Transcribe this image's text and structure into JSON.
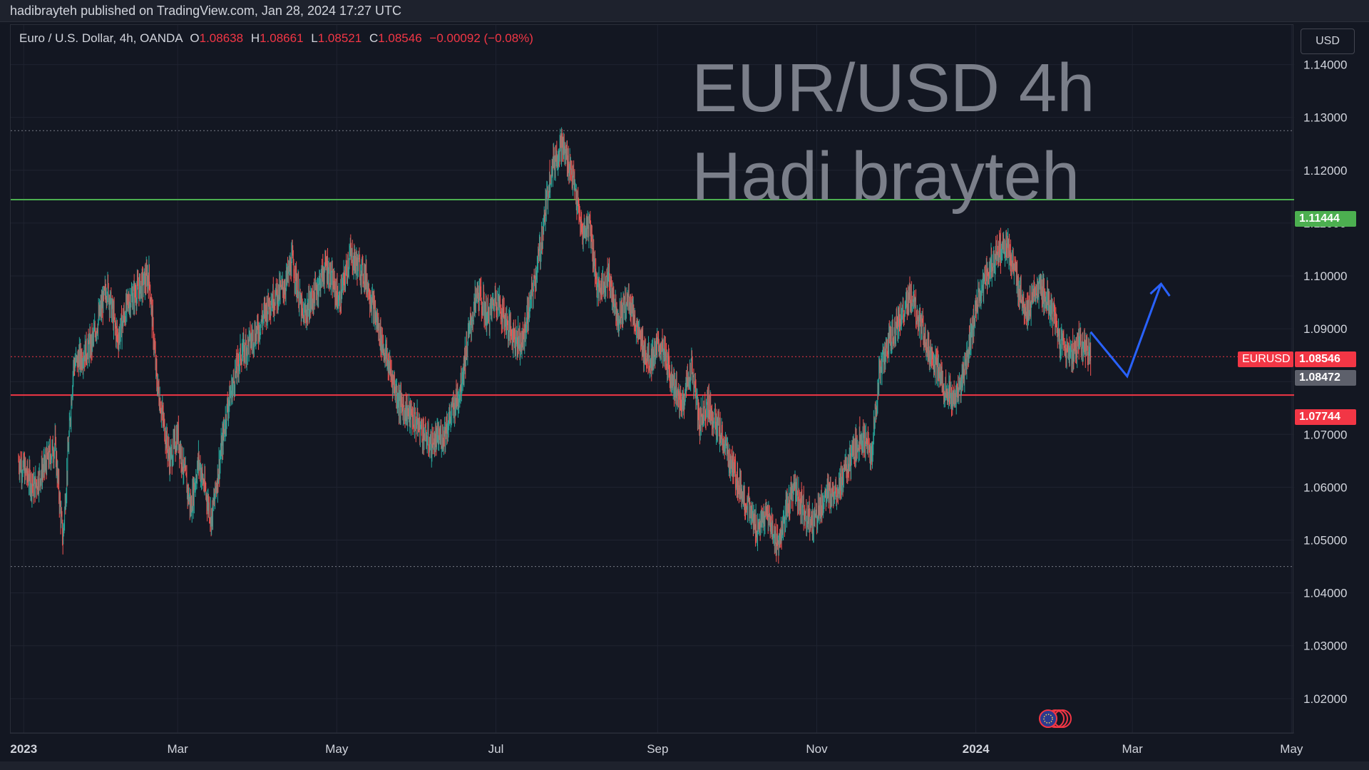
{
  "header": {
    "published_text": "hadibrayteh published on TradingView.com, Jan 28, 2024 17:27 UTC"
  },
  "legend": {
    "symbol": "Euro / U.S. Dollar, 4h, OANDA",
    "open_label": "O",
    "open": "1.08638",
    "high_label": "H",
    "high": "1.08661",
    "low_label": "L",
    "low": "1.08521",
    "close_label": "C",
    "close": "1.08546",
    "change": "−0.00092 (−0.08%)"
  },
  "currency_button": "USD",
  "watermark": {
    "line1": "EUR/USD 4h",
    "line2": "Hadi brayteh"
  },
  "tags": {
    "resistance": "1.11444",
    "symbol_label": "EURUSD",
    "last_price": "1.08546",
    "prev_close": "1.08472",
    "support": "1.07744"
  },
  "colors": {
    "background": "#131722",
    "up": "#26a69a",
    "down": "#ef5350",
    "resistance_line": "#4caf50",
    "support_line": "#f23645",
    "projection_arrow": "#2962ff"
  },
  "chart_data": {
    "type": "candlestick",
    "symbol": "EURUSD",
    "timeframe": "4h",
    "x_ticks": [
      "2023",
      "Mar",
      "May",
      "Jul",
      "Sep",
      "Nov",
      "2024",
      "Mar",
      "May"
    ],
    "y_ticks": [
      1.02,
      1.03,
      1.04,
      1.05,
      1.06,
      1.07,
      1.08,
      1.09,
      1.1,
      1.11,
      1.12,
      1.13,
      1.14
    ],
    "ylim": [
      1.0135,
      1.1475
    ],
    "grid": true,
    "swing_closes": [
      [
        "2022-12-30",
        1.065
      ],
      [
        "2023-01-05",
        1.06
      ],
      [
        "2023-01-13",
        1.068
      ],
      [
        "2023-01-16",
        1.05
      ],
      [
        "2023-01-20",
        1.083
      ],
      [
        "2023-01-27",
        1.087
      ],
      [
        "2023-02-02",
        1.098
      ],
      [
        "2023-02-06",
        1.088
      ],
      [
        "2023-02-10",
        1.095
      ],
      [
        "2023-02-18",
        1.1
      ],
      [
        "2023-02-21",
        1.08
      ],
      [
        "2023-02-26",
        1.065
      ],
      [
        "2023-03-01",
        1.07
      ],
      [
        "2023-03-06",
        1.056
      ],
      [
        "2023-03-09",
        1.065
      ],
      [
        "2023-03-14",
        1.054
      ],
      [
        "2023-03-20",
        1.075
      ],
      [
        "2023-03-25",
        1.085
      ],
      [
        "2023-04-01",
        1.09
      ],
      [
        "2023-04-05",
        1.095
      ],
      [
        "2023-04-11",
        1.098
      ],
      [
        "2023-04-14",
        1.103
      ],
      [
        "2023-04-18",
        1.092
      ],
      [
        "2023-04-22",
        1.096
      ],
      [
        "2023-04-27",
        1.102
      ],
      [
        "2023-05-02",
        1.095
      ],
      [
        "2023-05-06",
        1.104
      ],
      [
        "2023-05-12",
        1.1
      ],
      [
        "2023-05-18",
        1.088
      ],
      [
        "2023-05-25",
        1.076
      ],
      [
        "2023-06-01",
        1.072
      ],
      [
        "2023-06-06",
        1.068
      ],
      [
        "2023-06-11",
        1.07
      ],
      [
        "2023-06-17",
        1.078
      ],
      [
        "2023-06-21",
        1.09
      ],
      [
        "2023-06-24",
        1.097
      ],
      [
        "2023-06-28",
        1.092
      ],
      [
        "2023-07-01",
        1.096
      ],
      [
        "2023-07-06",
        1.09
      ],
      [
        "2023-07-11",
        1.087
      ],
      [
        "2023-07-15",
        1.097
      ],
      [
        "2023-07-18",
        1.105
      ],
      [
        "2023-07-22",
        1.12
      ],
      [
        "2023-07-26",
        1.125
      ],
      [
        "2023-07-30",
        1.12
      ],
      [
        "2023-08-03",
        1.108
      ],
      [
        "2023-08-06",
        1.11
      ],
      [
        "2023-08-09",
        1.097
      ],
      [
        "2023-08-13",
        1.1
      ],
      [
        "2023-08-17",
        1.092
      ],
      [
        "2023-08-21",
        1.096
      ],
      [
        "2023-08-25",
        1.088
      ],
      [
        "2023-08-29",
        1.084
      ],
      [
        "2023-09-02",
        1.087
      ],
      [
        "2023-09-07",
        1.08
      ],
      [
        "2023-09-10",
        1.075
      ],
      [
        "2023-09-14",
        1.083
      ],
      [
        "2023-09-17",
        1.072
      ],
      [
        "2023-09-20",
        1.076
      ],
      [
        "2023-09-25",
        1.07
      ],
      [
        "2023-10-01",
        1.062
      ],
      [
        "2023-10-05",
        1.057
      ],
      [
        "2023-10-09",
        1.052
      ],
      [
        "2023-10-13",
        1.055
      ],
      [
        "2023-10-17",
        1.049
      ],
      [
        "2023-10-23",
        1.06
      ],
      [
        "2023-10-30",
        1.053
      ],
      [
        "2023-11-04",
        1.058
      ],
      [
        "2023-11-09",
        1.06
      ],
      [
        "2023-11-14",
        1.065
      ],
      [
        "2023-11-18",
        1.07
      ],
      [
        "2023-11-22",
        1.066
      ],
      [
        "2023-11-25",
        1.082
      ],
      [
        "2023-11-29",
        1.088
      ],
      [
        "2023-12-03",
        1.092
      ],
      [
        "2023-12-07",
        1.096
      ],
      [
        "2023-12-11",
        1.09
      ],
      [
        "2023-12-15",
        1.085
      ],
      [
        "2023-12-19",
        1.08
      ],
      [
        "2023-12-23",
        1.076
      ],
      [
        "2023-12-27",
        1.08
      ],
      [
        "2024-01-01",
        1.094
      ],
      [
        "2024-01-05",
        1.1
      ],
      [
        "2024-01-09",
        1.104
      ],
      [
        "2024-01-13",
        1.106
      ],
      [
        "2024-01-17",
        1.098
      ],
      [
        "2024-01-21",
        1.093
      ],
      [
        "2024-01-25",
        1.098
      ],
      [
        "2024-01-29",
        1.095
      ],
      [
        "2024-02-02",
        1.088
      ],
      [
        "2024-02-06",
        1.085
      ],
      [
        "2024-02-10",
        1.088
      ],
      [
        "2024-02-14",
        1.0854
      ]
    ],
    "lows_and_highs": {
      "high": 1.127,
      "low": 1.045
    },
    "horizontal_levels": [
      {
        "price": 1.11444,
        "color": "#4caf50",
        "style": "solid"
      },
      {
        "price": 1.07744,
        "color": "#f23645",
        "style": "solid"
      },
      {
        "price": 1.1275,
        "color": "#787b86",
        "style": "dotted"
      },
      {
        "price": 1.045,
        "color": "#787b86",
        "style": "dotted"
      },
      {
        "price": 1.08472,
        "color": "#f23645",
        "style": "dotted"
      }
    ],
    "projection": [
      [
        "2024-02-14",
        1.0894
      ],
      [
        "2024-02-28",
        1.081
      ],
      [
        "2024-03-12",
        1.0985
      ]
    ]
  }
}
